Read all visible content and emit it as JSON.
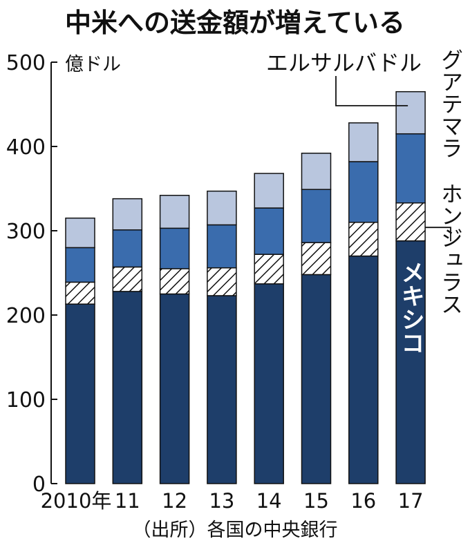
{
  "chart_data": {
    "type": "bar",
    "stacked": true,
    "title": "中米への送金額が増えている",
    "unit": "億ドル",
    "source": "（出所）各国の中央銀行",
    "categories": [
      "2010年",
      "11",
      "12",
      "13",
      "14",
      "15",
      "16",
      "17"
    ],
    "ylim": [
      0,
      500
    ],
    "yticks": [
      0,
      100,
      200,
      300,
      400,
      500
    ],
    "series": [
      {
        "name": "メキシコ",
        "values": [
          213,
          228,
          225,
          223,
          237,
          248,
          270,
          288
        ],
        "fill": "#1e3e6a",
        "pattern": false,
        "label_color": "#ffffff"
      },
      {
        "name": "ホンジュラス",
        "values": [
          26,
          29,
          30,
          33,
          35,
          38,
          40,
          45
        ],
        "fill": "#ffffff",
        "pattern": true,
        "label_color": "#111111"
      },
      {
        "name": "グアテマラ",
        "values": [
          41,
          44,
          48,
          51,
          55,
          63,
          72,
          82
        ],
        "fill": "#3a6cad",
        "pattern": false,
        "label_color": "#111111"
      },
      {
        "name": "エルサルバドル",
        "values": [
          35,
          37,
          39,
          40,
          41,
          43,
          46,
          50
        ],
        "fill": "#b9c6de",
        "pattern": false,
        "label_color": "#111111"
      }
    ]
  }
}
